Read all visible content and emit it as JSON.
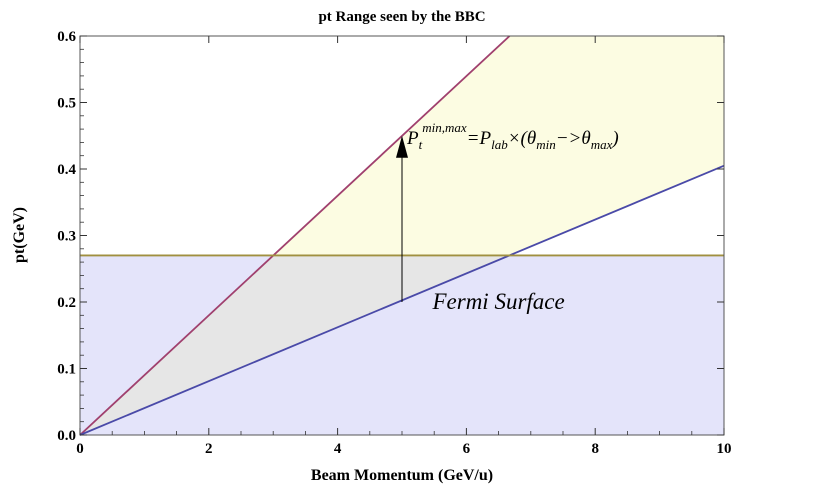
{
  "chart_data": {
    "type": "line",
    "title": "pt Range seen by the BBC",
    "xlabel": "Beam Momentum (GeV/u)",
    "ylabel": "pt(GeV)",
    "xlim": [
      0,
      10
    ],
    "ylim": [
      0,
      0.6
    ],
    "x_ticks": [
      0,
      2,
      4,
      6,
      8,
      10
    ],
    "y_ticks": [
      0.0,
      0.1,
      0.2,
      0.3,
      0.4,
      0.5,
      0.6
    ],
    "x_tick_labels": [
      "0",
      "2",
      "4",
      "6",
      "8",
      "10"
    ],
    "y_tick_labels": [
      "0.0",
      "0.1",
      "0.2",
      "0.3",
      "0.4",
      "0.5",
      "0.6"
    ],
    "grid": false,
    "series": [
      {
        "x": [
          0,
          6.67
        ],
        "y": [
          0,
          0.6
        ],
        "color": "#a0406e"
      },
      {
        "x": [
          0,
          10
        ],
        "y": [
          0,
          0.405
        ],
        "color": "#4a4aa8"
      },
      {
        "x": [
          0,
          10
        ],
        "y": [
          0.27,
          0.27
        ],
        "color": "#a09040"
      }
    ],
    "regions": [
      {
        "label": "Fermi Surface",
        "y_range": [
          0,
          0.27
        ],
        "color": "#e4e4fa"
      },
      {
        "label": "",
        "between": "series",
        "color": "#fcfce2"
      }
    ],
    "annotations": [
      {
        "arrow_x": 5,
        "arrow_from_y": 0.2,
        "arrow_to_y": 0.45,
        "formula": {
          "P": "P",
          "t": "t",
          "minmax": "min,max",
          "eq": "=",
          "lab": "lab",
          "times": "×(",
          "theta": "θ",
          "min": "min",
          "arrow": "−>",
          "max": "max",
          "close": ")"
        }
      },
      {
        "text": "Fermi Surface",
        "x": 6.5,
        "y": 0.2
      }
    ]
  }
}
